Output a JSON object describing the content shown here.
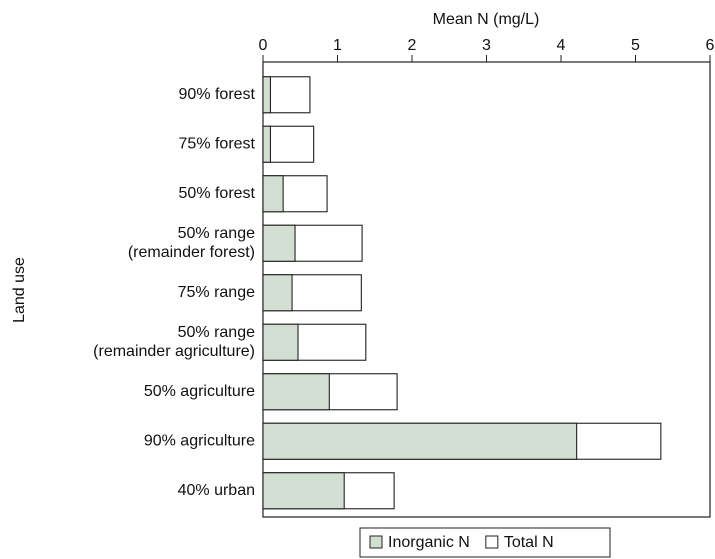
{
  "chart_data": {
    "type": "bar",
    "orientation": "horizontal",
    "overlap": true,
    "x_label": "Mean N (mg/L)",
    "y_label": "Land use",
    "categories": [
      "90% forest",
      "75% forest",
      "50% forest",
      "50% range\n(remainder forest)",
      "75% range",
      "50% range\n(remainder agriculture)",
      "50% agriculture",
      "90% agriculture",
      "40% urban"
    ],
    "series": [
      {
        "name": "Total N",
        "color": "#ffffff",
        "values": [
          0.63,
          0.68,
          0.86,
          1.33,
          1.32,
          1.38,
          1.8,
          5.34,
          1.76
        ]
      },
      {
        "name": "Inorganic N",
        "color": "#d3dfd3",
        "values": [
          0.1,
          0.1,
          0.27,
          0.43,
          0.39,
          0.47,
          0.89,
          4.21,
          1.09
        ]
      }
    ],
    "xlim": [
      0,
      6
    ],
    "xticks": [
      0,
      1,
      2,
      3,
      4,
      5,
      6
    ],
    "legend": "bottom"
  }
}
